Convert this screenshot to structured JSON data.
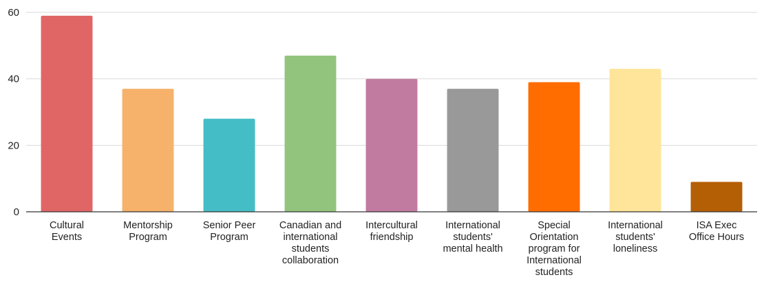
{
  "chart_data": {
    "type": "bar",
    "title": "",
    "xlabel": "",
    "ylabel": "",
    "ylim": [
      0,
      60
    ],
    "yticks": [
      0,
      20,
      40,
      60
    ],
    "grid": true,
    "legend": "none",
    "categories": [
      "Cultural Events",
      "Mentorship Program",
      "Senior Peer Program",
      "Canadian and international students collaboration",
      "Intercultural friendship",
      "International students' mental health",
      "Special Orientation program for International students",
      "International students' loneliness",
      "ISA Exec Office Hours"
    ],
    "category_label_lines": [
      [
        "Cultural",
        "Events"
      ],
      [
        "Mentorship",
        "Program"
      ],
      [
        "Senior Peer",
        "Program"
      ],
      [
        "Canadian and",
        "international",
        "students",
        "collaboration"
      ],
      [
        "Intercultural",
        "friendship"
      ],
      [
        "International",
        "students'",
        "mental health"
      ],
      [
        "Special",
        "Orientation",
        "program for",
        "International",
        "students"
      ],
      [
        "International",
        "students'",
        "loneliness"
      ],
      [
        "ISA Exec",
        "Office Hours"
      ]
    ],
    "values": [
      59,
      37,
      28,
      47,
      40,
      37,
      39,
      43,
      9
    ],
    "colors": [
      "#e06666",
      "#f6b26b",
      "#45bdc6",
      "#93c47d",
      "#c27ba0",
      "#999999",
      "#ff6d01",
      "#ffe599",
      "#b45f06"
    ]
  }
}
